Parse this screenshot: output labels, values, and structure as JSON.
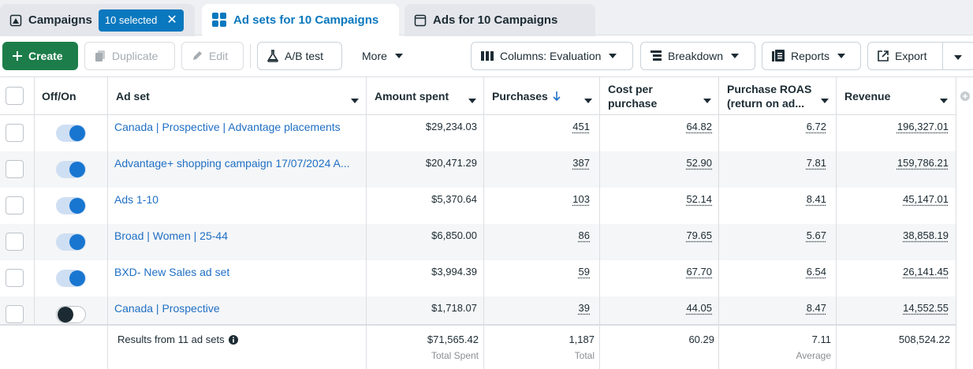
{
  "tabs": [
    {
      "label": "Campaigns",
      "selected_chip": "10 selected",
      "icon": "campaigns-icon"
    },
    {
      "label": "Ad sets for 10 Campaigns",
      "icon": "adsets-grid-icon"
    },
    {
      "label": "Ads for 10 Campaigns",
      "icon": "ad-window-icon"
    }
  ],
  "toolbar": {
    "create": "Create",
    "duplicate": "Duplicate",
    "edit": "Edit",
    "ab_test": "A/B test",
    "more": "More",
    "columns": "Columns: Evaluation",
    "breakdown": "Breakdown",
    "reports": "Reports",
    "export": "Export"
  },
  "colors": {
    "accent": "#0a78be",
    "create_green": "#1d7d4a",
    "link": "#1f6fc5",
    "toggle_on": "#1876d1"
  },
  "table": {
    "headers": {
      "offon": "Off/On",
      "adset": "Ad set",
      "amount_spent": "Amount spent",
      "purchases": "Purchases",
      "cost_per_purchase_1": "Cost per",
      "cost_per_purchase_2": "purchase",
      "roas_1": "Purchase ROAS",
      "roas_2": "(return on ad...",
      "revenue": "Revenue"
    },
    "rows": [
      {
        "on": true,
        "name": "Canada | Prospective | Advantage placements",
        "spent": "$29,234.03",
        "purchases": "451",
        "cpp": "64.82",
        "roas": "6.72",
        "revenue": "196,327.01"
      },
      {
        "on": true,
        "name": "Advantage+ shopping campaign 17/07/2024 A...",
        "spent": "$20,471.29",
        "purchases": "387",
        "cpp": "52.90",
        "roas": "7.81",
        "revenue": "159,786.21"
      },
      {
        "on": true,
        "name": "Ads 1-10",
        "spent": "$5,370.64",
        "purchases": "103",
        "cpp": "52.14",
        "roas": "8.41",
        "revenue": "45,147.01"
      },
      {
        "on": true,
        "name": "Broad | Women | 25-44",
        "spent": "$6,850.00",
        "purchases": "86",
        "cpp": "79.65",
        "roas": "5.67",
        "revenue": "38,858.19"
      },
      {
        "on": true,
        "name": "BXD- New Sales ad set",
        "spent": "$3,994.39",
        "purchases": "59",
        "cpp": "67.70",
        "roas": "6.54",
        "revenue": "26,141.45"
      },
      {
        "on": false,
        "name": "Canada | Prospective",
        "spent": "$1,718.07",
        "purchases": "39",
        "cpp": "44.05",
        "roas": "8.47",
        "revenue": "14,552.55"
      }
    ],
    "footer": {
      "results": "Results from 11 ad sets",
      "spent": "$71,565.42",
      "spent_sub": "Total Spent",
      "purchases": "1,187",
      "purchases_sub": "Total",
      "cpp": "60.29",
      "roas": "7.11",
      "roas_sub": "Average",
      "revenue": "508,524.22"
    }
  }
}
